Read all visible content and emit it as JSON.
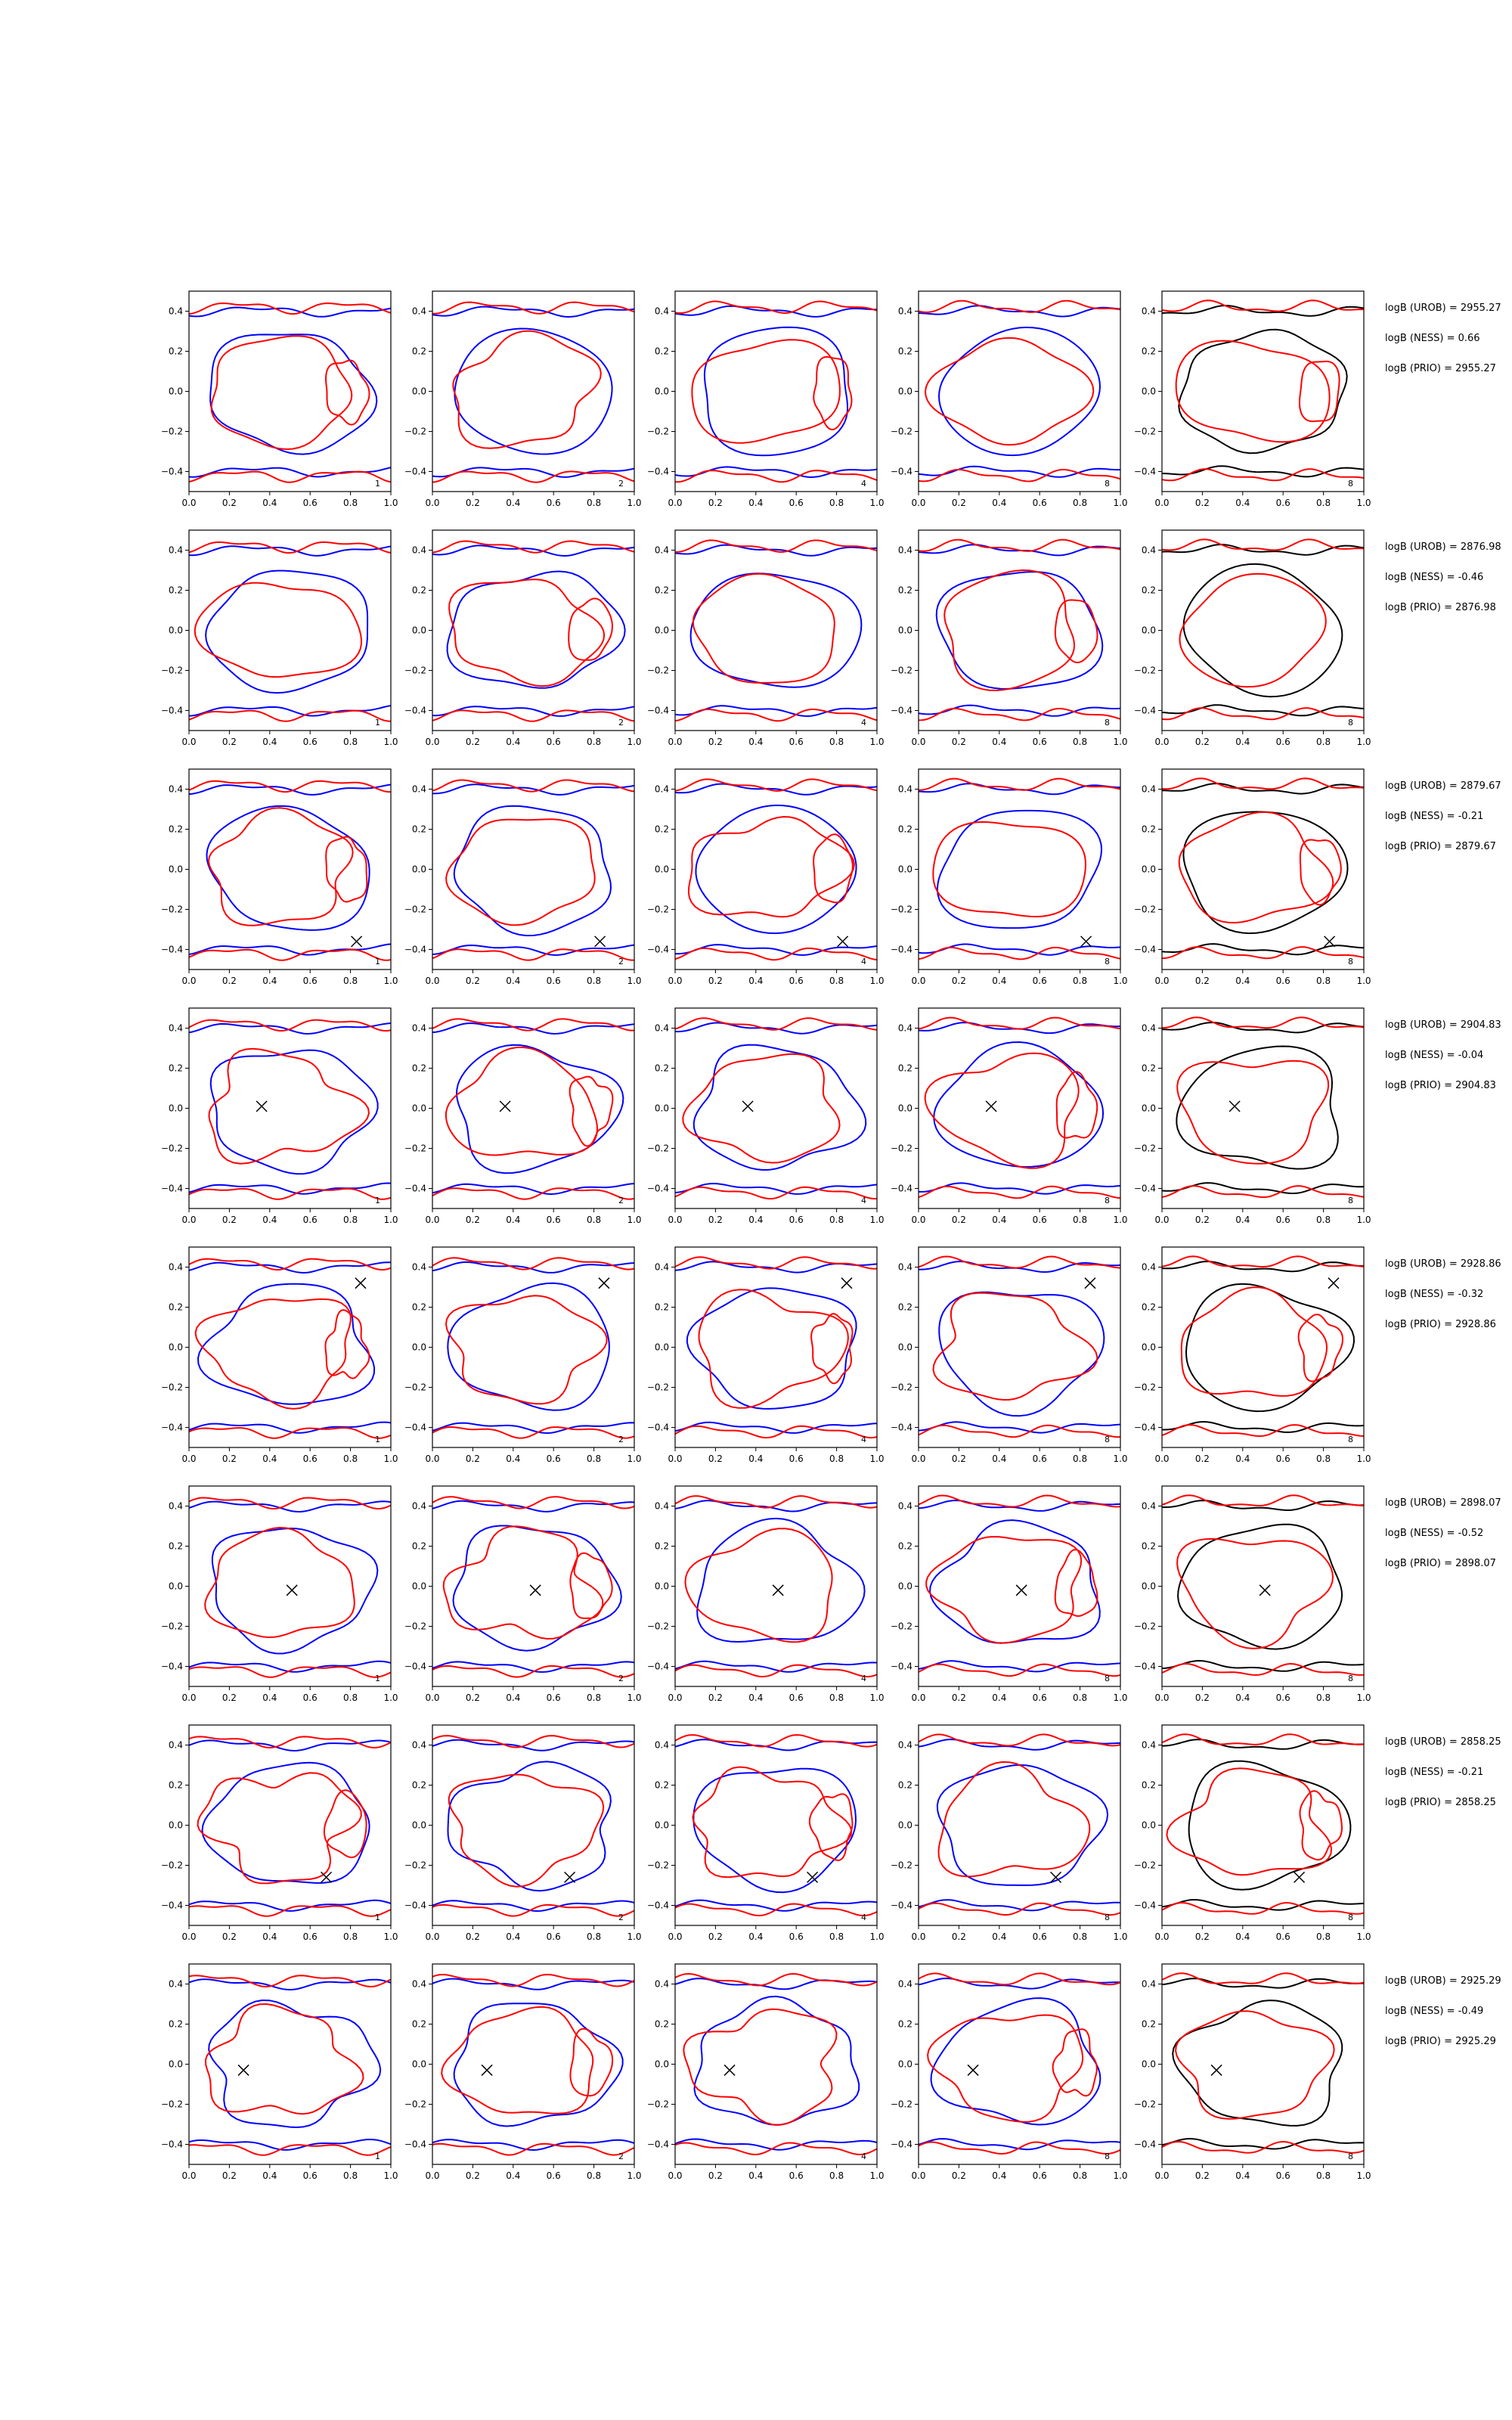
{
  "chart_data": {
    "type": "contour-grid",
    "rows": 8,
    "cols": 5,
    "xlim": [
      0.0,
      1.0
    ],
    "ylim": [
      -0.5,
      0.5
    ],
    "xticks": [
      "0.0",
      "0.2",
      "0.4",
      "0.6",
      "0.8",
      "1.0"
    ],
    "yticks": [
      "0.4",
      "0.2",
      "0.0",
      "−0.2",
      "−0.4"
    ],
    "ytick_values": [
      0.4,
      0.2,
      0.0,
      -0.2,
      -0.4
    ],
    "xtick_values": [
      0.0,
      0.2,
      0.4,
      0.6,
      0.8,
      1.0
    ],
    "panel_labels": [
      "1",
      "2",
      "4",
      "8",
      "8"
    ],
    "colors": {
      "blue": "#0000ff",
      "red": "#ff0000",
      "black": "#000000"
    },
    "row_markers": [
      null,
      null,
      [
        0.83,
        -0.36
      ],
      [
        0.36,
        0.01
      ],
      [
        0.85,
        0.32
      ],
      [
        0.51,
        -0.02
      ],
      [
        0.68,
        -0.26
      ],
      [
        0.27,
        -0.03
      ]
    ],
    "annotations": [
      [
        "logB (UROB) = 2955.27",
        "logB (NESS) = 0.66",
        "logB (PRIO) = 2955.27"
      ],
      [
        "logB (UROB) = 2876.98",
        "logB (NESS) = -0.46",
        "logB (PRIO) = 2876.98"
      ],
      [
        "logB (UROB) = 2879.67",
        "logB (NESS) = -0.21",
        "logB (PRIO) = 2879.67"
      ],
      [
        "logB (UROB) = 2904.83",
        "logB (NESS) = -0.04",
        "logB (PRIO) = 2904.83"
      ],
      [
        "logB (UROB) = 2928.86",
        "logB (NESS) = -0.32",
        "logB (PRIO) = 2928.86"
      ],
      [
        "logB (UROB) = 2898.07",
        "logB (NESS) = -0.52",
        "logB (PRIO) = 2898.07"
      ],
      [
        "logB (UROB) = 2858.25",
        "logB (NESS) = -0.21",
        "logB (PRIO) = 2858.25"
      ],
      [
        "logB (UROB) = 2925.29",
        "logB (NESS) = -0.49",
        "logB (PRIO) = 2925.29"
      ]
    ]
  }
}
